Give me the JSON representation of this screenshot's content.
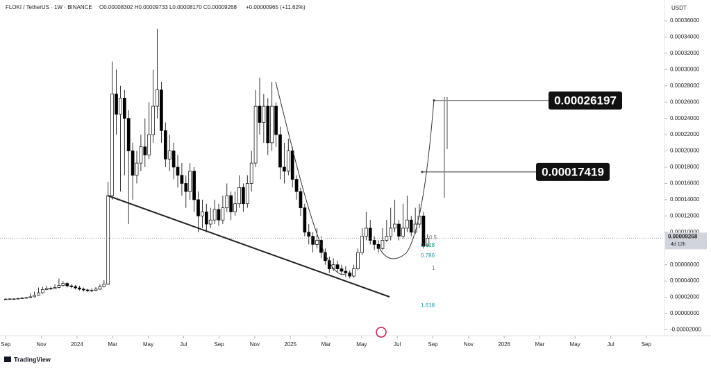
{
  "chart_data": {
    "type": "candlestick",
    "header": {
      "symbol": "FLOKI / TetherUS · 1W · BINANCE",
      "ohlc": "O0.00008302 H0.00009733 L0.00008170 C0.00009268",
      "change": "+0.00000965 (+11.62%)"
    },
    "y_axis_label": "USDT",
    "up_color": "#ffffff",
    "down_color": "#000000",
    "wick_color": "#000000",
    "x": [
      0,
      1,
      2,
      3,
      4,
      5,
      6,
      7,
      8,
      9,
      10,
      11,
      12,
      13,
      14,
      15,
      16,
      17,
      18,
      19,
      20,
      21,
      22,
      23,
      24,
      25,
      26,
      27,
      28,
      29,
      30,
      31,
      32,
      33,
      34,
      35,
      36,
      37,
      38,
      39,
      40,
      41,
      42,
      43,
      44,
      45,
      46,
      47,
      48,
      49,
      50,
      51,
      52,
      53,
      54,
      55,
      56,
      57,
      58,
      59,
      60,
      61,
      62,
      63,
      64,
      65,
      66,
      67,
      68,
      69,
      70,
      71,
      72,
      73,
      74,
      75,
      76,
      77,
      78,
      79,
      80,
      81,
      82,
      83,
      84,
      85,
      86,
      87,
      88,
      89,
      90,
      91,
      92,
      93,
      94,
      95,
      96,
      97,
      98,
      99,
      100,
      101,
      102,
      103
    ],
    "open": [
      1.75e-05,
      1.78e-05,
      1.8e-05,
      1.79e-05,
      1.85e-05,
      1.9e-05,
      1.95e-05,
      2.05e-05,
      2.25e-05,
      2.55e-05,
      2.95e-05,
      3.1e-05,
      3.05e-05,
      3.2e-05,
      3.45e-05,
      3.7e-05,
      3.4e-05,
      3.3e-05,
      3.15e-05,
      3e-05,
      2.9e-05,
      2.8e-05,
      2.85e-05,
      3e-05,
      3.3e-05,
      3.6e-05,
      0.000145,
      0.00027,
      0.000245,
      0.000265,
      0.00024,
      0.0002,
      0.00017,
      0.000185,
      0.000205,
      0.000195,
      0.00022,
      0.000255,
      0.000275,
      0.000225,
      0.00019,
      0.0002,
      0.00018,
      0.00017,
      0.00016,
      0.00015,
      0.000175,
      0.00014,
      0.00012,
      0.000125,
      0.00011,
      0.000115,
      0.000128,
      0.000115,
      0.00013,
      0.000145,
      0.000125,
      0.000135,
      0.000155,
      0.000135,
      0.00016,
      0.000185,
      0.000255,
      0.000235,
      0.000255,
      0.00021,
      0.000255,
      0.00022,
      0.00018,
      0.000175,
      0.0002,
      0.000165,
      0.00015,
      0.00013,
      0.0001,
      9.5e-05,
      8.5e-05,
      9e-05,
      7.5e-05,
      6.5e-05,
      5.5e-05,
      6e-05,
      5.5e-05,
      5.2e-05,
      5e-05,
      4.6e-05,
      5.5e-05,
      7.5e-05,
      9.5e-05,
      0.000105,
      9e-05,
      8.5e-05,
      8e-05,
      9e-05,
      9.5e-05,
      0.000105,
      0.00011,
      9.5e-05,
      0.000105,
      0.000115,
      0.0001,
      0.00011,
      0.00012,
      8.302e-05
    ],
    "high": [
      1.85e-05,
      1.88e-05,
      1.86e-05,
      1.92e-05,
      2e-05,
      2.05e-05,
      2.5e-05,
      2.7e-05,
      3.2e-05,
      3.3e-05,
      3.4e-05,
      3.3e-05,
      3.6e-05,
      4.3e-05,
      4e-05,
      3.85e-05,
      3.6e-05,
      3.5e-05,
      3.4e-05,
      3.2e-05,
      3.05e-05,
      3.1e-05,
      3.25e-05,
      3.6e-05,
      4.1e-05,
      0.000162,
      0.00031,
      0.0003,
      0.00028,
      0.000275,
      0.00025,
      0.00021,
      0.0002,
      0.00022,
      0.00024,
      0.00026,
      0.0003,
      0.00035,
      0.000285,
      0.000235,
      0.00022,
      0.00021,
      0.000195,
      0.000185,
      0.00017,
      0.000185,
      0.00018,
      0.00015,
      0.00014,
      0.000135,
      0.00013,
      0.00014,
      0.000135,
      0.000145,
      0.00016,
      0.00015,
      0.00015,
      0.00017,
      0.00016,
      0.00017,
      0.0002,
      0.000275,
      0.00029,
      0.00027,
      0.000265,
      0.000285,
      0.00026,
      0.00023,
      0.00021,
      0.000215,
      0.000205,
      0.00017,
      0.000155,
      0.000135,
      0.00011,
      0.0001,
      0.000105,
      9.5e-05,
      8e-05,
      7e-05,
      6.8e-05,
      6.5e-05,
      6e-05,
      5.8e-05,
      5.3e-05,
      6e-05,
      8e-05,
      0.000105,
      0.000125,
      0.000115,
      9.5e-05,
      9e-05,
      0.000105,
      0.000115,
      0.00013,
      0.00014,
      0.000115,
      0.000135,
      0.000145,
      0.00012,
      0.00013,
      0.000135,
      0.000125,
      9.733e-05
    ],
    "low": [
      1.7e-05,
      1.74e-05,
      1.73e-05,
      1.76e-05,
      1.82e-05,
      1.86e-05,
      1.9e-05,
      2e-05,
      2.2e-05,
      2.45e-05,
      2.85e-05,
      2.9e-05,
      3e-05,
      3.1e-05,
      3.3e-05,
      3.2e-05,
      3.1e-05,
      2.95e-05,
      2.85e-05,
      2.7e-05,
      2.65e-05,
      2.65e-05,
      2.75e-05,
      2.9e-05,
      3.2e-05,
      3.5e-05,
      0.00014,
      0.00022,
      0.00015,
      0.00017,
      0.00011,
      0.00014,
      0.00016,
      0.000175,
      0.00018,
      0.00019,
      0.00021,
      0.00024,
      0.00021,
      0.00018,
      0.000175,
      0.000165,
      0.000155,
      0.000145,
      0.00013,
      0.00014,
      0.000125,
      0.0001,
      0.000105,
      0.0001,
      0.000105,
      0.00011,
      0.000108,
      0.00011,
      0.000125,
      0.000115,
      0.00012,
      0.00013,
      0.000125,
      0.00013,
      0.00015,
      0.00018,
      0.00022,
      0.00021,
      0.000195,
      0.0002,
      0.000205,
      0.000165,
      0.00016,
      0.00017,
      0.000155,
      0.00014,
      0.00012,
      9.5e-05,
      8.5e-05,
      7.5e-05,
      8e-05,
      6.8e-05,
      6e-05,
      5e-05,
      5.2e-05,
      5e-05,
      4.8e-05,
      4.5e-05,
      4.3e-05,
      4.4e-05,
      5.3e-05,
      7.2e-05,
      9e-05,
      8.5e-05,
      7.8e-05,
      7.5e-05,
      7.8e-05,
      8.8e-05,
      9e-05,
      0.0001,
      9e-05,
      9.2e-05,
      0.0001,
      9.5e-05,
      9.8e-05,
      0.000105,
      8e-05,
      8.17e-05
    ],
    "close": [
      1.78e-05,
      1.8e-05,
      1.79e-05,
      1.85e-05,
      1.9e-05,
      1.95e-05,
      2.05e-05,
      2.25e-05,
      2.55e-05,
      2.95e-05,
      3.1e-05,
      3.05e-05,
      3.2e-05,
      3.45e-05,
      3.7e-05,
      3.4e-05,
      3.3e-05,
      3.15e-05,
      3e-05,
      2.9e-05,
      2.8e-05,
      2.85e-05,
      3e-05,
      3.3e-05,
      3.6e-05,
      0.000145,
      0.00027,
      0.000245,
      0.000265,
      0.00024,
      0.0002,
      0.00017,
      0.000185,
      0.000205,
      0.000195,
      0.00022,
      0.000255,
      0.000275,
      0.000225,
      0.00019,
      0.0002,
      0.00018,
      0.00017,
      0.00016,
      0.00015,
      0.000175,
      0.00014,
      0.00012,
      0.000125,
      0.00011,
      0.000115,
      0.000128,
      0.000115,
      0.00013,
      0.000145,
      0.000125,
      0.000135,
      0.000155,
      0.000135,
      0.00016,
      0.000185,
      0.000255,
      0.000235,
      0.000255,
      0.00021,
      0.000255,
      0.00022,
      0.00018,
      0.000175,
      0.0002,
      0.000165,
      0.00015,
      0.00013,
      0.0001,
      9.5e-05,
      8.5e-05,
      9e-05,
      7.5e-05,
      6.5e-05,
      5.5e-05,
      6e-05,
      5.5e-05,
      5.2e-05,
      5e-05,
      4.6e-05,
      5.5e-05,
      7.5e-05,
      9.5e-05,
      0.000105,
      9e-05,
      8.5e-05,
      8e-05,
      9e-05,
      9.5e-05,
      0.000105,
      0.00011,
      9.5e-05,
      0.000105,
      0.000115,
      0.0001,
      0.00011,
      0.00012,
      8.302e-05,
      9.268e-05
    ],
    "xlim": [
      -1.4,
      160.5
    ],
    "xticks": [
      {
        "value": 0,
        "label": "Sep"
      },
      {
        "value": 8.7,
        "label": "Nov"
      },
      {
        "value": 17.4,
        "label": "2024"
      },
      {
        "value": 26.1,
        "label": "Mar"
      },
      {
        "value": 34.8,
        "label": "May"
      },
      {
        "value": 43.4,
        "label": "Jul"
      },
      {
        "value": 52.1,
        "label": "Sep"
      },
      {
        "value": 60.8,
        "label": "Nov"
      },
      {
        "value": 69.5,
        "label": "2025"
      },
      {
        "value": 78.2,
        "label": "Mar"
      },
      {
        "value": 86.9,
        "label": "May"
      },
      {
        "value": 95.6,
        "label": "Jul"
      },
      {
        "value": 104.3,
        "label": "Sep"
      },
      {
        "value": 113.0,
        "label": "Nov"
      },
      {
        "value": 121.7,
        "label": "2026"
      },
      {
        "value": 130.4,
        "label": "Mar"
      },
      {
        "value": 139.0,
        "label": "May"
      },
      {
        "value": 147.7,
        "label": "Jul"
      },
      {
        "value": 156.4,
        "label": "Sep"
      }
    ],
    "ylim": [
      -2.73e-05,
      0.0003856
    ],
    "yticks": [
      {
        "value": 0.00036,
        "label": "0.00036000"
      },
      {
        "value": 0.00034,
        "label": "0.00034000"
      },
      {
        "value": 0.00032,
        "label": "0.00032000"
      },
      {
        "value": 0.0003,
        "label": "0.00030000"
      },
      {
        "value": 0.00028,
        "label": "0.00028000"
      },
      {
        "value": 0.00026,
        "label": "0.00026000"
      },
      {
        "value": 0.00024,
        "label": "0.00024000"
      },
      {
        "value": 0.00022,
        "label": "0.00022000"
      },
      {
        "value": 0.0002,
        "label": "0.00020000"
      },
      {
        "value": 0.00018,
        "label": "0.00018000"
      },
      {
        "value": 0.00016,
        "label": "0.00016000"
      },
      {
        "value": 0.00014,
        "label": "0.00014000"
      },
      {
        "value": 0.00012,
        "label": "0.00012000"
      },
      {
        "value": 0.0001,
        "label": "0.00010000"
      },
      {
        "value": 6e-05,
        "label": "0.00006000"
      },
      {
        "value": 4e-05,
        "label": "0.00004000"
      },
      {
        "value": 2e-05,
        "label": "0.00002000"
      },
      {
        "value": 0,
        "label": "0.00000000"
      },
      {
        "value": -2e-05,
        "label": "-0.00002000"
      }
    ],
    "last_price": {
      "value": 9.268e-05,
      "label": "0.00009268"
    },
    "countdown": "4d 12h",
    "targets": [
      {
        "value": 0.00026197,
        "label": "0.00026197"
      },
      {
        "value": 0.00017419,
        "label": "0.00017419"
      }
    ],
    "fib_levels": [
      "0.5",
      "0.618",
      "0.786",
      "1",
      "1.618"
    ],
    "brand": "TradingView"
  }
}
